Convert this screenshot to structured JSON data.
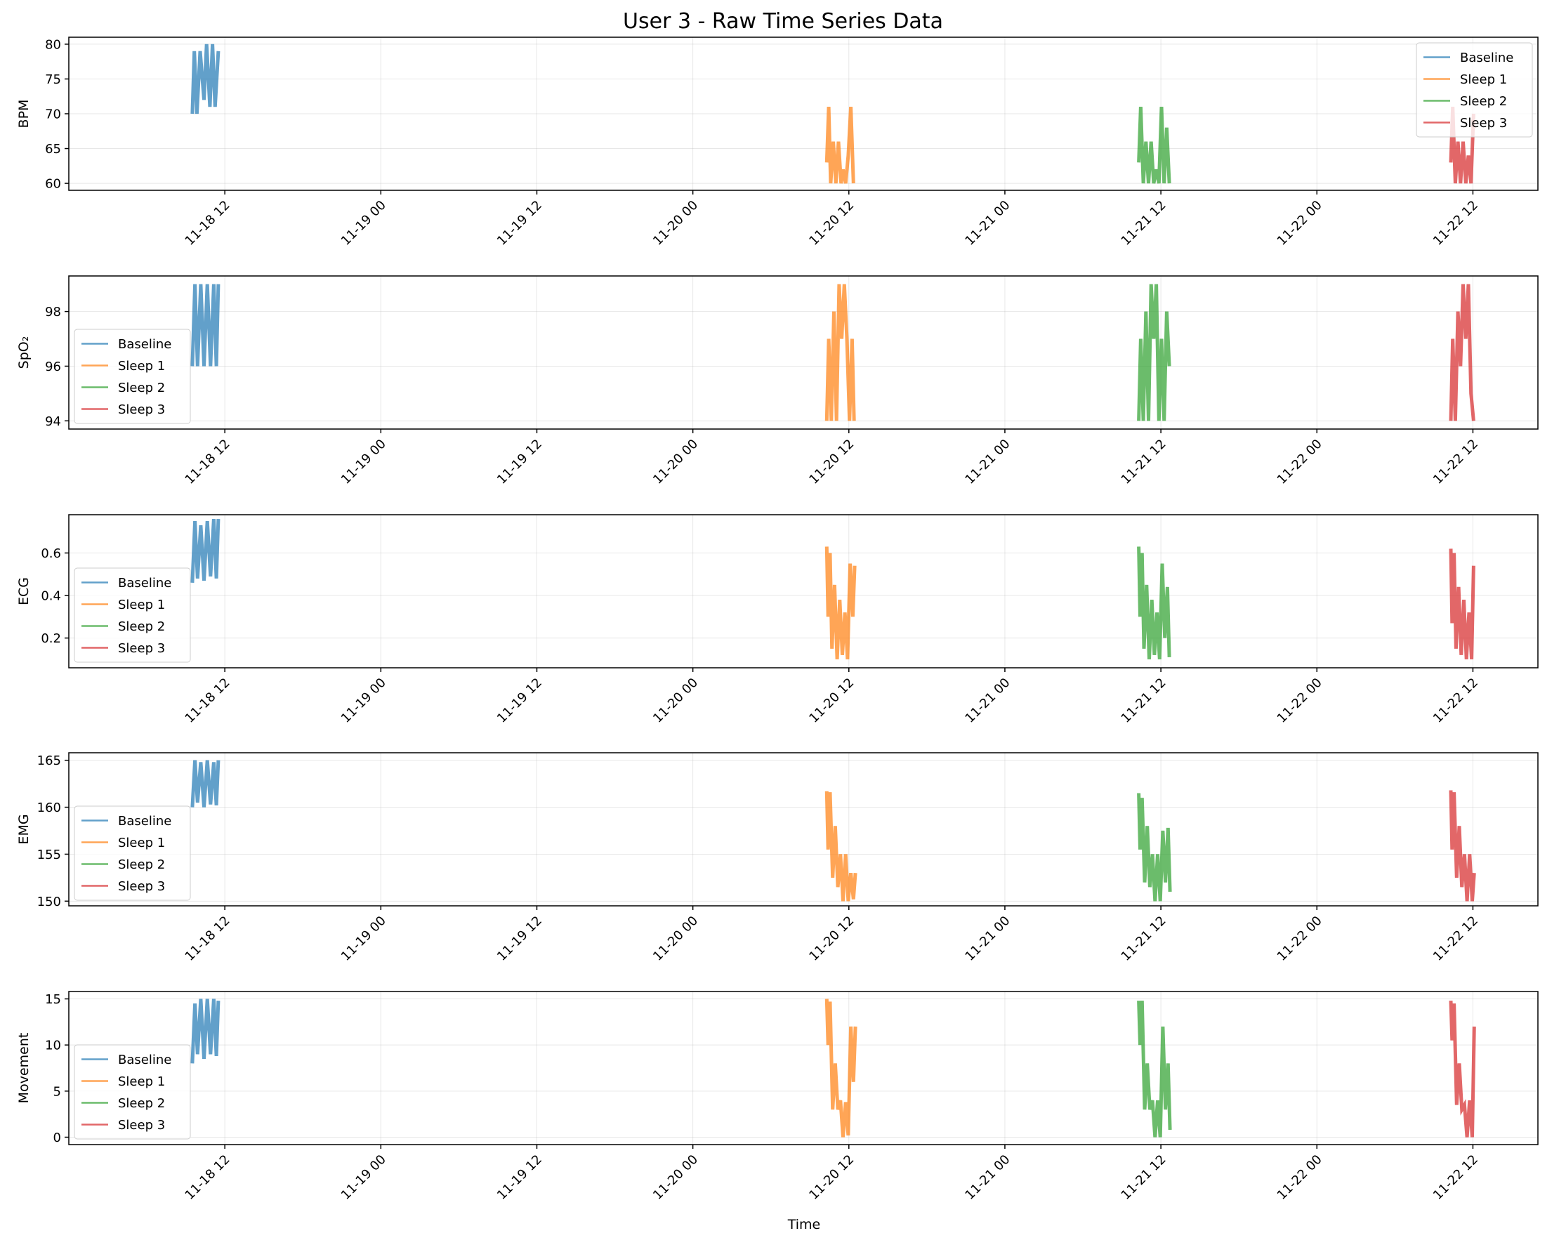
{
  "title": "User 3 - Raw Time Series Data",
  "chart_data": [
    {
      "type": "line",
      "ylabel": "BPM",
      "xlabel": "",
      "ylim": [
        59.0,
        81.0
      ],
      "yticks": [
        60,
        65,
        70,
        75,
        80
      ],
      "legend_position": "upper right",
      "series": [
        {
          "name": "Baseline",
          "color": "#1f77b4",
          "x": [
            9.0,
            9.15,
            9.35,
            9.6,
            9.9,
            10.1,
            10.35,
            10.55,
            10.75,
            11.0
          ],
          "y": [
            70,
            79,
            70,
            79,
            72,
            80,
            71,
            80,
            71,
            79
          ]
        },
        {
          "name": "Sleep 1",
          "color": "#ff7f0e",
          "x": [
            57.8,
            57.95,
            58.1,
            58.3,
            58.5,
            58.7,
            58.9,
            59.05,
            59.25,
            59.45,
            59.65,
            59.85
          ],
          "y": [
            63,
            71,
            60,
            66,
            60,
            66,
            60,
            62,
            60,
            64,
            71,
            60
          ]
        },
        {
          "name": "Sleep 2",
          "color": "#2ca02c",
          "x": [
            81.8,
            81.95,
            82.15,
            82.35,
            82.55,
            82.75,
            82.95,
            83.15,
            83.35,
            83.55,
            83.75,
            83.95,
            84.15
          ],
          "y": [
            63,
            71,
            60,
            66,
            60,
            66,
            60,
            62,
            60,
            71,
            60,
            68,
            60
          ]
        },
        {
          "name": "Sleep 3",
          "color": "#d62728",
          "x": [
            105.8,
            105.95,
            106.15,
            106.35,
            106.55,
            106.75,
            106.95,
            107.15,
            107.35,
            107.55
          ],
          "y": [
            63,
            71,
            60,
            66,
            60,
            66,
            60,
            64,
            60,
            70
          ]
        }
      ]
    },
    {
      "type": "line",
      "ylabel": "SpO₂",
      "xlabel": "",
      "ylim": [
        93.7,
        99.3
      ],
      "yticks": [
        94,
        96,
        98
      ],
      "legend_position": "lower left",
      "series": [
        {
          "name": "Baseline",
          "color": "#1f77b4",
          "x": [
            9.0,
            9.2,
            9.4,
            9.65,
            9.9,
            10.15,
            10.4,
            10.65,
            10.85,
            11.0
          ],
          "y": [
            96,
            99,
            96,
            99,
            96,
            99,
            96,
            99,
            96,
            99
          ]
        },
        {
          "name": "Sleep 1",
          "color": "#ff7f0e",
          "x": [
            57.8,
            57.95,
            58.15,
            58.35,
            58.55,
            58.75,
            58.95,
            59.15,
            59.35,
            59.55,
            59.75,
            59.9
          ],
          "y": [
            94,
            97,
            94,
            98,
            94,
            99,
            97,
            99,
            97,
            94,
            97,
            94
          ]
        },
        {
          "name": "Sleep 2",
          "color": "#2ca02c",
          "x": [
            81.8,
            81.95,
            82.15,
            82.35,
            82.55,
            82.75,
            82.95,
            83.15,
            83.35,
            83.55,
            83.75,
            83.95,
            84.15
          ],
          "y": [
            94,
            97,
            94,
            98,
            94,
            99,
            97,
            99,
            94,
            97,
            94,
            98,
            96
          ]
        },
        {
          "name": "Sleep 3",
          "color": "#d62728",
          "x": [
            105.8,
            105.95,
            106.15,
            106.35,
            106.55,
            106.75,
            106.95,
            107.15,
            107.35,
            107.55
          ],
          "y": [
            94,
            97,
            94,
            98,
            96,
            99,
            97,
            99,
            95,
            94
          ]
        }
      ]
    },
    {
      "type": "line",
      "ylabel": "ECG",
      "xlabel": "",
      "ylim": [
        0.06,
        0.78
      ],
      "yticks": [
        0.2,
        0.4,
        0.6
      ],
      "yticklabels": [
        "0.2",
        "0.4",
        "0.6"
      ],
      "legend_position": "lower left",
      "series": [
        {
          "name": "Baseline",
          "color": "#1f77b4",
          "x": [
            9.0,
            9.2,
            9.4,
            9.65,
            9.9,
            10.15,
            10.4,
            10.65,
            10.85,
            11.0
          ],
          "y": [
            0.46,
            0.75,
            0.48,
            0.73,
            0.47,
            0.75,
            0.49,
            0.76,
            0.48,
            0.76
          ]
        },
        {
          "name": "Sleep 1",
          "color": "#ff7f0e",
          "x": [
            57.8,
            57.9,
            58.05,
            58.2,
            58.4,
            58.6,
            58.8,
            59.0,
            59.2,
            59.4,
            59.6,
            59.8,
            59.95
          ],
          "y": [
            0.63,
            0.3,
            0.6,
            0.15,
            0.45,
            0.1,
            0.38,
            0.12,
            0.32,
            0.1,
            0.55,
            0.3,
            0.54
          ]
        },
        {
          "name": "Sleep 2",
          "color": "#2ca02c",
          "x": [
            81.8,
            81.9,
            82.05,
            82.2,
            82.4,
            82.6,
            82.8,
            83.0,
            83.2,
            83.4,
            83.6,
            83.8,
            84.0,
            84.15
          ],
          "y": [
            0.63,
            0.3,
            0.6,
            0.15,
            0.45,
            0.1,
            0.38,
            0.12,
            0.32,
            0.1,
            0.55,
            0.2,
            0.44,
            0.11
          ]
        },
        {
          "name": "Sleep 3",
          "color": "#d62728",
          "x": [
            105.8,
            105.9,
            106.05,
            106.2,
            106.4,
            106.6,
            106.8,
            107.0,
            107.2,
            107.4,
            107.55
          ],
          "y": [
            0.62,
            0.27,
            0.6,
            0.15,
            0.44,
            0.12,
            0.38,
            0.1,
            0.32,
            0.1,
            0.54
          ]
        }
      ]
    },
    {
      "type": "line",
      "ylabel": "EMG",
      "xlabel": "",
      "ylim": [
        149.5,
        165.8
      ],
      "yticks": [
        150,
        155,
        160,
        165
      ],
      "legend_position": "lower left",
      "series": [
        {
          "name": "Baseline",
          "color": "#1f77b4",
          "x": [
            9.0,
            9.2,
            9.4,
            9.65,
            9.9,
            10.15,
            10.4,
            10.65,
            10.85,
            11.0
          ],
          "y": [
            160,
            165,
            160.5,
            164.8,
            160,
            165,
            160.3,
            164.8,
            160.2,
            165
          ]
        },
        {
          "name": "Sleep 1",
          "color": "#ff7f0e",
          "x": [
            57.8,
            57.9,
            58.05,
            58.25,
            58.45,
            58.65,
            58.85,
            59.05,
            59.25,
            59.45,
            59.65,
            59.85,
            60.0
          ],
          "y": [
            161.7,
            155.5,
            161.6,
            152.5,
            158,
            151.5,
            155,
            150,
            155,
            150,
            153,
            150.2,
            153
          ]
        },
        {
          "name": "Sleep 2",
          "color": "#2ca02c",
          "x": [
            81.8,
            81.9,
            82.05,
            82.25,
            82.45,
            82.65,
            82.85,
            83.05,
            83.25,
            83.45,
            83.65,
            83.85,
            84.05,
            84.2
          ],
          "y": [
            161.5,
            155.5,
            161,
            152,
            158,
            151.5,
            155,
            150,
            155,
            150,
            157.5,
            152,
            157.8,
            151
          ]
        },
        {
          "name": "Sleep 3",
          "color": "#d62728",
          "x": [
            105.8,
            105.9,
            106.05,
            106.25,
            106.45,
            106.65,
            106.85,
            107.05,
            107.25,
            107.45,
            107.6
          ],
          "y": [
            161.8,
            155.5,
            161.6,
            152.5,
            158,
            151.5,
            155,
            150,
            155,
            150,
            153
          ]
        }
      ]
    },
    {
      "type": "line",
      "ylabel": "Movement",
      "xlabel": "Time",
      "ylim": [
        -0.8,
        15.8
      ],
      "yticks": [
        0,
        5,
        10,
        15
      ],
      "legend_position": "lower left",
      "series": [
        {
          "name": "Baseline",
          "color": "#1f77b4",
          "x": [
            9.0,
            9.2,
            9.4,
            9.65,
            9.9,
            10.15,
            10.4,
            10.65,
            10.85,
            11.0
          ],
          "y": [
            8,
            14.5,
            9,
            15,
            8.5,
            15,
            9,
            15,
            8.8,
            14.8
          ]
        },
        {
          "name": "Sleep 1",
          "color": "#ff7f0e",
          "x": [
            57.8,
            57.9,
            58.05,
            58.25,
            58.45,
            58.65,
            58.85,
            59.05,
            59.25,
            59.45,
            59.65,
            59.85,
            60.0
          ],
          "y": [
            15,
            10,
            14.7,
            3,
            8,
            3,
            4,
            0,
            3.8,
            0.2,
            12,
            6,
            12
          ]
        },
        {
          "name": "Sleep 2",
          "color": "#2ca02c",
          "x": [
            81.8,
            81.9,
            82.05,
            82.25,
            82.45,
            82.65,
            82.85,
            83.05,
            83.25,
            83.45,
            83.65,
            83.85,
            84.05,
            84.2
          ],
          "y": [
            14.8,
            10,
            14.8,
            3,
            8,
            3,
            4,
            0,
            4,
            0,
            12,
            3,
            8,
            0.8
          ]
        },
        {
          "name": "Sleep 3",
          "color": "#d62728",
          "x": [
            105.8,
            105.9,
            106.05,
            106.25,
            106.45,
            106.65,
            106.85,
            107.05,
            107.25,
            107.45,
            107.6
          ],
          "y": [
            14.8,
            10.5,
            14.5,
            3.5,
            8,
            3,
            3.5,
            0,
            4,
            0,
            12
          ]
        }
      ]
    }
  ],
  "x_axis": {
    "xlim": [
      -0.5,
      112.5
    ],
    "ticks": [
      12,
      24,
      36,
      48,
      60,
      72,
      84,
      96,
      108,
      120
    ],
    "ticklabels": [
      "11-18 12",
      "11-19 00",
      "11-19 12",
      "11-20 00",
      "11-20 12",
      "11-21 00",
      "11-21 12",
      "11-22 00",
      "11-22 12"
    ],
    "tick_positions": [
      11.5,
      23.5,
      35.5,
      47.5,
      59.5,
      71.5,
      83.5,
      95.5,
      107.5
    ]
  },
  "grid": true
}
